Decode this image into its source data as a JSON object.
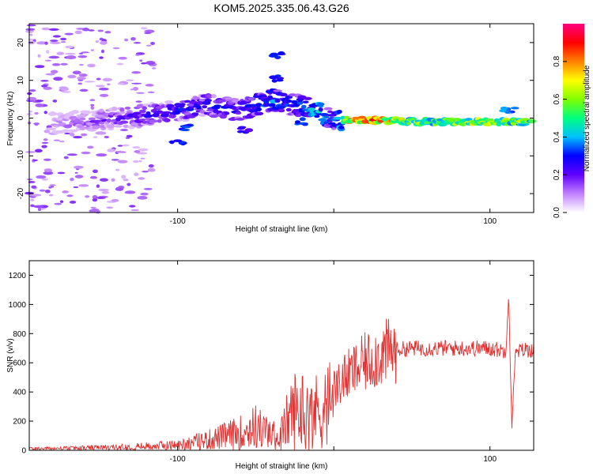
{
  "figure": {
    "title": "KOM5.2025.335.06.43.G26"
  },
  "chart_data": [
    {
      "type": "heatmap",
      "xlabel": "Height of straight line (km)",
      "ylabel": "Frequency (Hz)",
      "xlim": [
        -195,
        128
      ],
      "ylim": [
        -25,
        25
      ],
      "x_ticks": [
        -100,
        0,
        100
      ],
      "x_tick_labels": [
        "-100",
        "",
        "100"
      ],
      "y_ticks": [
        -20,
        -10,
        0,
        10,
        20
      ],
      "colorbar": {
        "label": "Normalized spectral amplitude",
        "range": [
          0,
          1
        ],
        "ticks": [
          0.0,
          0.2,
          0.4,
          0.6,
          0.8
        ],
        "tick_labels": [
          "0.0",
          "0.2",
          "0.4",
          "0.6",
          "0.8"
        ],
        "colormap": [
          "#ffffff",
          "#c080ff",
          "#6000ff",
          "#0000ff",
          "#00c0ff",
          "#00ff80",
          "#80ff00",
          "#ffff00",
          "#ff8000",
          "#ff0000",
          "#ff0080"
        ]
      },
      "ridge": {
        "x": [
          -175,
          -150,
          -125,
          -100,
          -80,
          -60,
          -40,
          -30,
          -20,
          -10,
          0,
          10,
          30,
          50,
          70,
          90,
          110,
          128
        ],
        "frequency": [
          -1.5,
          -0.5,
          0.5,
          2,
          3.5,
          2,
          5,
          4,
          3,
          1.5,
          -0.5,
          -0.5,
          -0.5,
          -1,
          -1,
          -1,
          -1,
          -1
        ],
        "amplitude": [
          0.15,
          0.2,
          0.25,
          0.3,
          0.3,
          0.3,
          0.4,
          0.35,
          0.35,
          0.5,
          0.3,
          0.8,
          0.85,
          0.6,
          0.65,
          0.7,
          0.65,
          0.6
        ]
      }
    },
    {
      "type": "line",
      "xlabel": "Height of straight line (km)",
      "ylabel": "SNR (v/v)",
      "xlim": [
        -195,
        128
      ],
      "ylim": [
        0,
        1300
      ],
      "x_ticks": [
        -100,
        0,
        100
      ],
      "x_tick_labels": [
        "-100",
        "",
        "100"
      ],
      "y_ticks": [
        0,
        200,
        400,
        600,
        800,
        1000,
        1200
      ],
      "color": "#e03030",
      "series": [
        {
          "x": [
            -195,
            -180,
            -160,
            -140,
            -120,
            -100,
            -90,
            -80,
            -70,
            -60,
            -50,
            -40,
            -35,
            -30,
            -25,
            -20,
            -15,
            -10,
            -5,
            0,
            5,
            10,
            15,
            20,
            30,
            40,
            50,
            60,
            70,
            80,
            90,
            100,
            105,
            110,
            112,
            114,
            116,
            120,
            128
          ],
          "values": [
            15,
            15,
            20,
            25,
            35,
            45,
            70,
            90,
            120,
            150,
            200,
            140,
            100,
            250,
            350,
            350,
            300,
            350,
            380,
            420,
            480,
            520,
            560,
            600,
            660,
            690,
            700,
            700,
            700,
            700,
            700,
            700,
            690,
            680,
            1100,
            150,
            650,
            690,
            690
          ]
        }
      ]
    }
  ]
}
